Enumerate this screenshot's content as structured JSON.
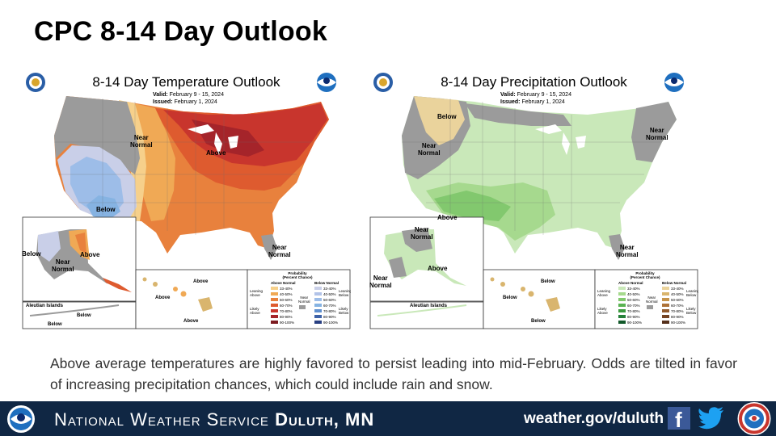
{
  "slide": {
    "title": "CPC 8-14 Day Outlook",
    "caption": "Above average temperatures are highly favored to persist leading into mid-February. Odds are tilted in favor of increasing precipitation chances, which could include rain and snow."
  },
  "temperature_map": {
    "title": "8-14 Day Temperature Outlook",
    "valid_label": "Valid:",
    "valid_value": "February 9 - 15, 2024",
    "issued_label": "Issued:",
    "issued_value": "February 1, 2024",
    "labels": {
      "near_normal_west": "Near\nNormal",
      "above": "Above",
      "below": "Below",
      "near_normal_se": "Near\nNormal",
      "ak_below": "Below",
      "ak_near_normal": "Near\nNormal",
      "ak_above": "Above",
      "aleutian": "Aleutian Islands",
      "aleutian_below_1": "Below",
      "aleutian_below_2": "Below",
      "hi_above_1": "Above",
      "hi_above_2": "Above",
      "hi_above_3": "Above"
    }
  },
  "precipitation_map": {
    "title": "8-14 Day Precipitation Outlook",
    "valid_label": "Valid:",
    "valid_value": "February 9 - 15, 2024",
    "issued_label": "Issued:",
    "issued_value": "February 1, 2024",
    "labels": {
      "below_nw": "Below",
      "near_normal_west": "Near\nNormal",
      "above": "Above",
      "near_normal_ne": "Near\nNormal",
      "near_normal_se": "Near\nNormal",
      "ak_near_normal": "Near\nNormal",
      "ak_above": "Above",
      "ak_near_normal_sw": "Near\nNormal",
      "aleutian": "Aleutian Islands",
      "hi_below_1": "Below",
      "hi_below_2": "Below",
      "hi_below_3": "Below"
    }
  },
  "legend": {
    "title": "Probability\n(Percent Chance)",
    "above_normal": "Above Normal",
    "below_normal": "Below Normal",
    "near_normal": "Near\nNormal",
    "leaning_above": "Leaning\nAbove",
    "likely_above": "Likely\nAbove",
    "leaning_below": "Leaning\nBelow",
    "likely_below": "Likely\nBelow",
    "ranges": [
      "33-40%",
      "40-50%",
      "50-60%",
      "60-70%",
      "70-80%",
      "80-90%",
      "90-100%"
    ],
    "temp_above_colors": [
      "#f6d08b",
      "#f0a955",
      "#e8813d",
      "#de5b2f",
      "#c8352d",
      "#a5242a",
      "#7c1a1f"
    ],
    "temp_below_colors": [
      "#c9cfe8",
      "#b2c3e8",
      "#9dbde8",
      "#86b3e2",
      "#5f8fcf",
      "#3d62a8",
      "#283f82"
    ],
    "precip_above_colors": [
      "#c9e8b9",
      "#a6d98e",
      "#82c86e",
      "#5ab352",
      "#3b9a3f",
      "#26803a",
      "#12592a"
    ],
    "precip_below_colors": [
      "#ead39c",
      "#d9b56e",
      "#c5944c",
      "#ad7238",
      "#925a2c",
      "#754424",
      "#55301b"
    ]
  },
  "footer": {
    "agency_prefix": "National Weather Service",
    "office": "Duluth, MN",
    "website": "weather.gov/duluth",
    "facebook_glyph": "f"
  },
  "colors": {
    "footer_bg": "#102744",
    "near_normal_gray": "#9b9b9b"
  }
}
